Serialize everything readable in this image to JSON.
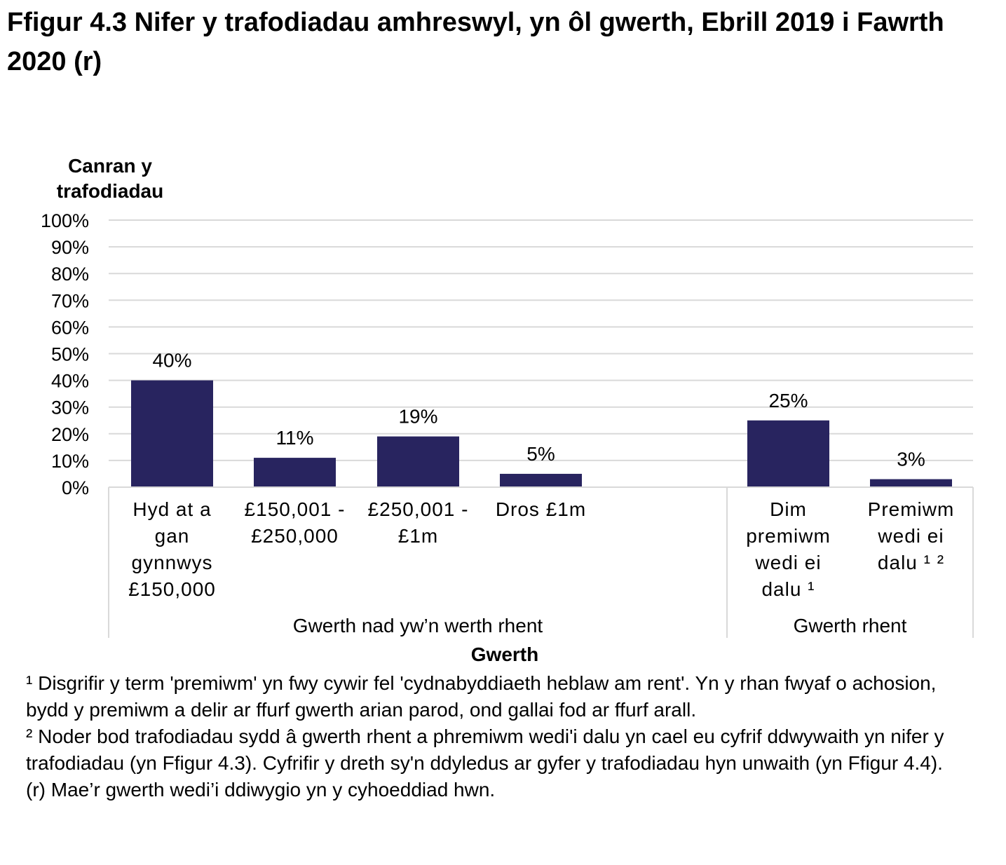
{
  "title": "Ffigur 4.3  Nifer y trafodiadau amhreswyl, yn ôl gwerth, Ebrill 2019 i Fawrth 2020 (r)",
  "chart_data": {
    "type": "bar",
    "ylabel_lines": [
      "Canran y",
      "trafodiadau"
    ],
    "xlabel": "Gwerth",
    "ylim": [
      0,
      100
    ],
    "yticks": [
      "0%",
      "10%",
      "20%",
      "30%",
      "40%",
      "50%",
      "60%",
      "70%",
      "80%",
      "90%",
      "100%"
    ],
    "grid": true,
    "bar_color": "#28245f",
    "groups": [
      {
        "name": "Gwerth nad yw’n werth rhent",
        "categories": [
          {
            "label_lines": [
              "Hyd at a",
              "gan",
              "gynnwys",
              "£150,000"
            ],
            "value": 40,
            "data_label": "40%"
          },
          {
            "label_lines": [
              "£150,001 -",
              "£250,000"
            ],
            "value": 11,
            "data_label": "11%"
          },
          {
            "label_lines": [
              "£250,001 -",
              "£1m"
            ],
            "value": 19,
            "data_label": "19%"
          },
          {
            "label_lines": [
              "Dros £1m"
            ],
            "value": 5,
            "data_label": "5%"
          }
        ]
      },
      {
        "name": "Gwerth rhent",
        "categories": [
          {
            "label_lines": [
              "Dim",
              "premiwm",
              "wedi ei",
              "dalu ¹"
            ],
            "value": 25,
            "data_label": "25%"
          },
          {
            "label_lines": [
              "Premiwm",
              "wedi ei",
              "dalu ¹ ²"
            ],
            "value": 3,
            "data_label": "3%"
          }
        ]
      }
    ]
  },
  "footnotes": [
    "¹ Disgrifir y term 'premiwm' yn fwy cywir fel 'cydnabyddiaeth heblaw am rent'. Yn y rhan fwyaf o achosion, bydd y premiwm a delir ar ffurf gwerth arian parod, ond gallai fod ar ffurf arall.",
    "² Noder bod trafodiadau sydd â gwerth rhent a phremiwm wedi'i dalu yn cael eu cyfrif ddwywaith yn nifer y trafodiadau (yn Ffigur 4.3). Cyfrifir y dreth sy'n ddyledus ar gyfer y trafodiadau hyn unwaith (yn Ffigur 4.4).",
    "(r) Mae’r gwerth wedi’i ddiwygio yn y cyhoeddiad hwn."
  ]
}
